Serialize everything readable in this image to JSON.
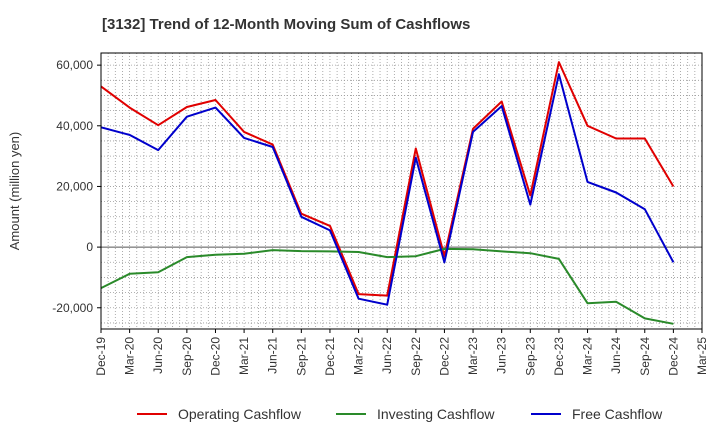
{
  "chart_data": {
    "type": "line",
    "title": "[3132]  Trend of 12-Month Moving Sum of Cashflows",
    "xlabel": "",
    "ylabel": "Amount (million yen)",
    "x": [
      "Dec-19",
      "Mar-20",
      "Jun-20",
      "Sep-20",
      "Dec-20",
      "Mar-21",
      "Jun-21",
      "Sep-21",
      "Dec-21",
      "Mar-22",
      "Jun-22",
      "Sep-22",
      "Dec-22",
      "Mar-23",
      "Jun-23",
      "Sep-23",
      "Dec-23",
      "Mar-24",
      "Jun-24",
      "Sep-24",
      "Dec-24",
      "Mar-25"
    ],
    "ylim": [
      -27000,
      64000
    ],
    "yticks": [
      -20000,
      0,
      20000,
      40000,
      60000
    ],
    "ytick_labels": [
      "-20,000",
      "0",
      "20,000",
      "40,000",
      "60,000"
    ],
    "grid": true,
    "legend_position": "bottom",
    "series": [
      {
        "name": "Operating Cashflow",
        "color": "#e00000",
        "values": [
          53000,
          46000,
          40200,
          46200,
          48500,
          38000,
          33800,
          11000,
          7000,
          -15500,
          -16000,
          32500,
          -3000,
          39000,
          48000,
          17000,
          61000,
          40000,
          35800,
          35800,
          20000,
          null
        ]
      },
      {
        "name": "Investing Cashflow",
        "color": "#2a8a2a",
        "values": [
          -13500,
          -8800,
          -8300,
          -3300,
          -2500,
          -2200,
          -1000,
          -1300,
          -1400,
          -1600,
          -3300,
          -3000,
          -600,
          -700,
          -1400,
          -2000,
          -3900,
          -18500,
          -18000,
          -23500,
          -25300,
          null
        ]
      },
      {
        "name": "Free Cashflow",
        "color": "#0000cc",
        "values": [
          39500,
          37000,
          32000,
          43000,
          46000,
          36000,
          33000,
          10000,
          5500,
          -17000,
          -19000,
          29500,
          -5000,
          38000,
          46500,
          14000,
          57000,
          21500,
          18000,
          12500,
          -5000,
          null
        ]
      }
    ]
  }
}
